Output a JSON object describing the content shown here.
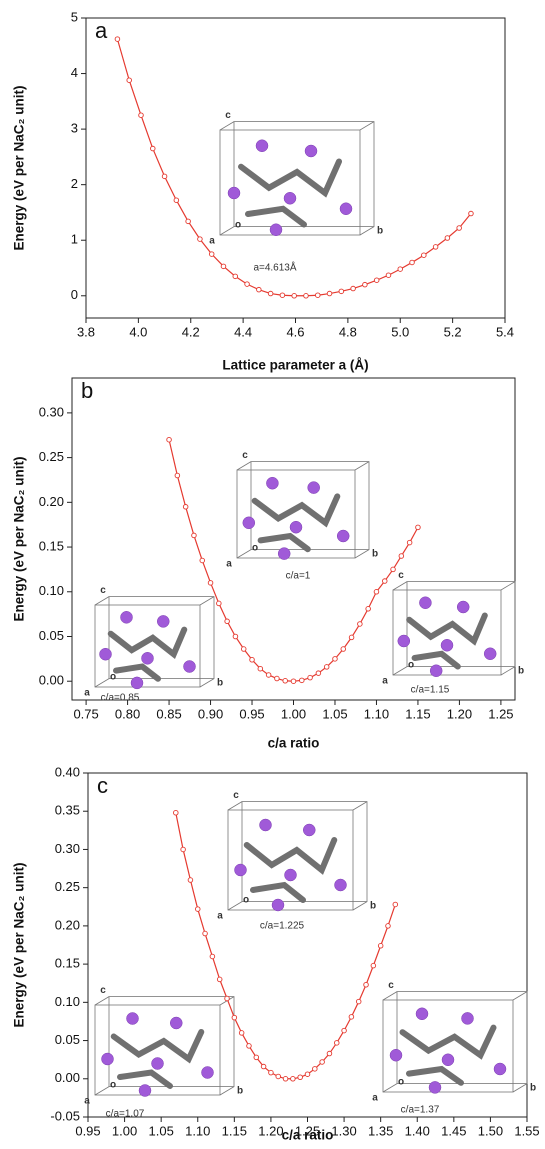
{
  "chart_data": [
    {
      "type": "line",
      "panel_label": "a",
      "xlabel": "Lattice parameter a (Å)",
      "ylabel": "Energy (eV per NaC₂ unit)",
      "x": [
        3.92,
        3.965,
        4.01,
        4.055,
        4.1,
        4.145,
        4.19,
        4.235,
        4.28,
        4.325,
        4.37,
        4.415,
        4.46,
        4.505,
        4.55,
        4.595,
        4.64,
        4.685,
        4.73,
        4.775,
        4.82,
        4.865,
        4.91,
        4.955,
        5.0,
        5.045,
        5.09,
        5.135,
        5.18,
        5.225,
        5.27
      ],
      "values": [
        4.62,
        3.88,
        3.25,
        2.65,
        2.15,
        1.72,
        1.34,
        1.02,
        0.75,
        0.53,
        0.35,
        0.21,
        0.11,
        0.04,
        0.01,
        0.0,
        0.0,
        0.01,
        0.04,
        0.08,
        0.13,
        0.2,
        0.28,
        0.37,
        0.48,
        0.6,
        0.73,
        0.88,
        1.04,
        1.22,
        1.48
      ],
      "color": "#e53a30",
      "xlim": [
        3.8,
        5.4
      ],
      "xticks": [
        3.8,
        {
          "value": 4.0,
          "label": "4.0"
        },
        4.2,
        4.4,
        4.6,
        4.8,
        {
          "value": 5.0,
          "label": "5.0"
        },
        5.2,
        5.4
      ],
      "ylim": [
        -0.4,
        5
      ],
      "yticks": [
        0,
        1,
        2,
        3,
        4,
        5
      ],
      "insets": [
        {
          "caption": "a=4.613Å",
          "letters": [
            "c",
            "o",
            "a",
            "b"
          ]
        }
      ]
    },
    {
      "type": "line",
      "panel_label": "b",
      "xlabel": "c/a ratio",
      "ylabel": "Energy (eV per NaC₂ unit)",
      "x": [
        0.85,
        0.86,
        0.87,
        0.88,
        0.89,
        0.9,
        0.91,
        0.92,
        0.93,
        0.94,
        0.95,
        0.96,
        0.97,
        0.98,
        0.99,
        1.0,
        1.01,
        1.02,
        1.03,
        1.04,
        1.05,
        1.06,
        1.07,
        1.08,
        1.09,
        1.1,
        1.11,
        1.12,
        1.13,
        1.14,
        1.15
      ],
      "values": [
        0.27,
        0.23,
        0.195,
        0.163,
        0.135,
        0.11,
        0.087,
        0.067,
        0.05,
        0.036,
        0.024,
        0.014,
        0.007,
        0.003,
        0.0005,
        0,
        0.001,
        0.004,
        0.009,
        0.016,
        0.025,
        0.036,
        0.049,
        0.064,
        0.081,
        0.1,
        0.112,
        0.125,
        0.14,
        0.155,
        0.172
      ],
      "color": "#e53a30",
      "xlim": [
        0.733,
        1.267
      ],
      "xticks": [
        0.75,
        {
          "value": 0.8,
          "label": "0.80"
        },
        0.85,
        {
          "value": 0.9,
          "label": "0.90"
        },
        0.95,
        {
          "value": 1.0,
          "label": "1.00"
        },
        1.05,
        {
          "value": 1.1,
          "label": "1.10"
        },
        1.15,
        {
          "value": 1.2,
          "label": "1.20"
        },
        1.25
      ],
      "ylim": [
        -0.021,
        0.339
      ],
      "yticks": [
        {
          "value": 0,
          "label": "0.00"
        },
        0.05,
        {
          "value": 0.1,
          "label": "0.10"
        },
        0.15,
        {
          "value": 0.2,
          "label": "0.20"
        },
        0.25,
        {
          "value": 0.3,
          "label": "0.30"
        }
      ],
      "insets": [
        {
          "caption": "c/a=0.85",
          "letters": [
            "c",
            "o",
            "a",
            "b"
          ]
        },
        {
          "caption": "c/a=1",
          "letters": [
            "c",
            "o",
            "a",
            "b"
          ]
        },
        {
          "caption": "c/a=1.15",
          "letters": [
            "c",
            "o",
            "a",
            "b"
          ]
        }
      ]
    },
    {
      "type": "line",
      "panel_label": "c",
      "xlabel": "c/a ratio",
      "ylabel": "Energy (eV per NaC₂ unit)",
      "x": [
        1.07,
        1.08,
        1.09,
        1.1,
        1.11,
        1.12,
        1.13,
        1.14,
        1.15,
        1.16,
        1.17,
        1.18,
        1.19,
        1.2,
        1.21,
        1.22,
        1.23,
        1.24,
        1.25,
        1.26,
        1.27,
        1.28,
        1.29,
        1.3,
        1.31,
        1.32,
        1.33,
        1.34,
        1.35,
        1.36,
        1.37
      ],
      "values": [
        0.348,
        0.3,
        0.26,
        0.222,
        0.19,
        0.16,
        0.13,
        0.105,
        0.08,
        0.06,
        0.043,
        0.028,
        0.016,
        0.008,
        0.003,
        0,
        0,
        0.002,
        0.006,
        0.013,
        0.022,
        0.033,
        0.047,
        0.063,
        0.081,
        0.101,
        0.123,
        0.148,
        0.174,
        0.2,
        0.228
      ],
      "color": "#e53a30",
      "xlim": [
        0.95,
        1.55
      ],
      "xticks": [
        0.95,
        {
          "value": 1.0,
          "label": "1.00"
        },
        1.05,
        {
          "value": 1.1,
          "label": "1.10"
        },
        1.15,
        {
          "value": 1.2,
          "label": "1.20"
        },
        1.25,
        {
          "value": 1.3,
          "label": "1.30"
        },
        1.35,
        {
          "value": 1.4,
          "label": "1.40"
        },
        1.45,
        {
          "value": 1.5,
          "label": "1.50"
        },
        1.55
      ],
      "ylim": [
        -0.05,
        0.4
      ],
      "yticks": [
        -0.05,
        {
          "value": 0,
          "label": "0.00"
        },
        0.05,
        {
          "value": 0.1,
          "label": "0.10"
        },
        0.15,
        {
          "value": 0.2,
          "label": "0.20"
        },
        0.25,
        {
          "value": 0.3,
          "label": "0.30"
        },
        0.35,
        {
          "value": 0.4,
          "label": "0.40"
        }
      ],
      "insets": [
        {
          "caption": "c/a=1.07",
          "letters": [
            "c",
            "o",
            "a",
            "b"
          ]
        },
        {
          "caption": "c/a=1.225",
          "letters": [
            "c",
            "o",
            "a",
            "b"
          ]
        },
        {
          "caption": "c/a=1.37",
          "letters": [
            "c",
            "o",
            "a",
            "b"
          ]
        }
      ]
    }
  ]
}
